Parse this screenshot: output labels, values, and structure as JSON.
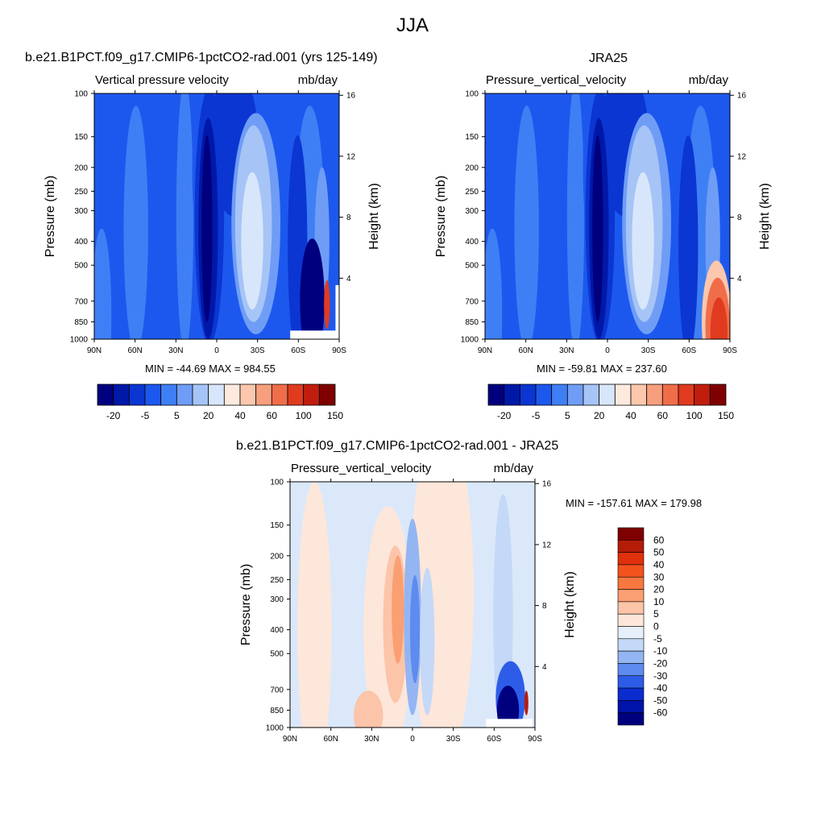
{
  "page_title": "JJA",
  "chart_data": [
    {
      "type": "heatmap",
      "id": "model",
      "title": "b.e21.B1PCT.f09_g17.CMIP6-1pctCO2-rad.001 (yrs 125-149)",
      "left_string": "Vertical pressure velocity",
      "right_string": "mb/day",
      "xlabel": "",
      "ylabel": "Pressure (mb)",
      "ylabel_right": "Height (km)",
      "x_ticks": [
        "90N",
        "60N",
        "30N",
        "0",
        "30S",
        "60S",
        "90S"
      ],
      "y_ticks": [
        "100",
        "150",
        "200",
        "250",
        "300",
        "400",
        "500",
        "700",
        "850",
        "1000"
      ],
      "y_ticks_right": [
        "16",
        "12",
        "8",
        "4"
      ],
      "min_max_text": "MIN = -44.69  MAX = 984.55",
      "min": -44.69,
      "max": 984.55,
      "colorbar_labels": [
        "-20",
        "-5",
        "5",
        "20",
        "40",
        "60",
        "100",
        "150"
      ],
      "colorbar_colors": [
        "#00007f",
        "#0018a8",
        "#0b36d2",
        "#1d58ee",
        "#3f7ff5",
        "#6f9df6",
        "#a6c4f6",
        "#d8e6fb",
        "#fde9dd",
        "#fbc7ad",
        "#f79f7d",
        "#f06d4a",
        "#e03b1f",
        "#c11d0e",
        "#7f0000"
      ]
    },
    {
      "type": "heatmap",
      "id": "obs",
      "title": "JRA25",
      "left_string": "Pressure_vertical_velocity",
      "right_string": "mb/day",
      "xlabel": "",
      "ylabel": "Pressure (mb)",
      "ylabel_right": "Height (km)",
      "x_ticks": [
        "90N",
        "60N",
        "30N",
        "0",
        "30S",
        "60S",
        "90S"
      ],
      "y_ticks": [
        "100",
        "150",
        "200",
        "250",
        "300",
        "400",
        "500",
        "700",
        "850",
        "1000"
      ],
      "y_ticks_right": [
        "16",
        "12",
        "8",
        "4"
      ],
      "min_max_text": "MIN = -59.81  MAX = 237.60",
      "min": -59.81,
      "max": 237.6,
      "colorbar_labels": [
        "-20",
        "-5",
        "5",
        "20",
        "40",
        "60",
        "100",
        "150"
      ],
      "colorbar_colors": [
        "#00007f",
        "#0018a8",
        "#0b36d2",
        "#1d58ee",
        "#3f7ff5",
        "#6f9df6",
        "#a6c4f6",
        "#d8e6fb",
        "#fde9dd",
        "#fbc7ad",
        "#f79f7d",
        "#f06d4a",
        "#e03b1f",
        "#c11d0e",
        "#7f0000"
      ]
    },
    {
      "type": "heatmap",
      "id": "diff",
      "title": "b.e21.B1PCT.f09_g17.CMIP6-1pctCO2-rad.001 - JRA25",
      "left_string": "Pressure_vertical_velocity",
      "right_string": "mb/day",
      "xlabel": "",
      "ylabel": "Pressure (mb)",
      "ylabel_right": "Height (km)",
      "x_ticks": [
        "90N",
        "60N",
        "30N",
        "0",
        "30S",
        "60S",
        "90S"
      ],
      "y_ticks": [
        "100",
        "150",
        "200",
        "250",
        "300",
        "400",
        "500",
        "700",
        "850",
        "1000"
      ],
      "y_ticks_right": [
        "16",
        "12",
        "8",
        "4"
      ],
      "min_max_text": "MIN = -157.61  MAX = 179.98",
      "min": -157.61,
      "max": 179.98,
      "colorbar_labels": [
        "60",
        "50",
        "40",
        "30",
        "20",
        "10",
        "5",
        "0",
        "-5",
        "-10",
        "-20",
        "-30",
        "-40",
        "-50",
        "-60"
      ],
      "colorbar_colors": [
        "#7f0000",
        "#b51c08",
        "#e0300c",
        "#f3521d",
        "#f8773f",
        "#fa9f72",
        "#fcc4a8",
        "#fde6da",
        "#e7effb",
        "#c4d8f7",
        "#93b5f2",
        "#5d8bef",
        "#2d5de8",
        "#0b2ccf",
        "#0013a8",
        "#00007f"
      ]
    }
  ]
}
